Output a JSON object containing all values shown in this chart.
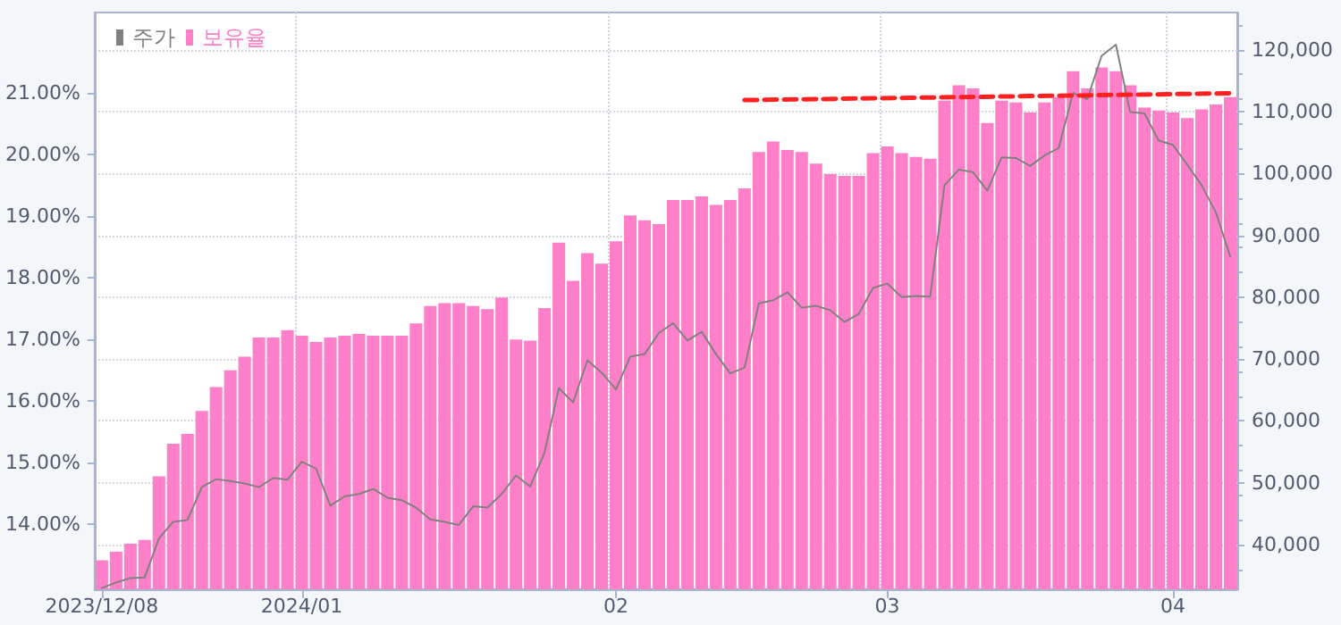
{
  "chart_data": {
    "type": "bar",
    "categories": [
      "2023/12/08",
      null,
      null,
      null,
      null,
      null,
      null,
      null,
      null,
      null,
      null,
      null,
      null,
      null,
      "2024/01",
      null,
      null,
      null,
      null,
      null,
      null,
      null,
      null,
      null,
      null,
      null,
      null,
      null,
      null,
      null,
      null,
      null,
      null,
      null,
      null,
      null,
      "02",
      null,
      null,
      null,
      null,
      null,
      null,
      null,
      null,
      null,
      null,
      null,
      null,
      null,
      null,
      null,
      null,
      null,
      null,
      "03",
      null,
      null,
      null,
      null,
      null,
      null,
      null,
      null,
      null,
      null,
      null,
      null,
      null,
      null,
      null,
      null,
      null,
      null,
      null,
      "04",
      null,
      null,
      null,
      null
    ],
    "series": [
      {
        "name": "주가",
        "type": "line",
        "axis": "y2",
        "color": "#808080",
        "values": [
          33000,
          33900,
          34600,
          34700,
          41000,
          43700,
          44000,
          49300,
          50600,
          50300,
          49900,
          49300,
          50800,
          50500,
          53400,
          52300,
          46300,
          47800,
          48200,
          49000,
          47600,
          47200,
          46000,
          44100,
          43700,
          43200,
          46200,
          46000,
          48200,
          51200,
          49400,
          54900,
          65300,
          63000,
          69800,
          67800,
          65100,
          70400,
          70800,
          74200,
          75800,
          73000,
          74400,
          70800,
          67700,
          68600,
          79000,
          79500,
          80800,
          78300,
          78600,
          77900,
          76000,
          77300,
          81500,
          82200,
          80000,
          80200,
          80100,
          98100,
          100600,
          100200,
          97200,
          102600,
          102500,
          101200,
          102900,
          104100,
          113000,
          112000,
          119000,
          120800,
          109900,
          109700,
          105300,
          104600,
          101400,
          98100,
          93700,
          86600
        ]
      },
      {
        "name": "보유율",
        "color": "#ff80c8",
        "values": [
          13.42,
          13.56,
          13.69,
          13.75,
          14.78,
          15.31,
          15.47,
          15.84,
          16.23,
          16.5,
          16.72,
          17.03,
          17.03,
          17.15,
          17.06,
          16.96,
          17.03,
          17.06,
          17.09,
          17.06,
          17.06,
          17.06,
          17.26,
          17.54,
          17.59,
          17.59,
          17.54,
          17.49,
          17.68,
          17.0,
          16.98,
          17.51,
          18.57,
          17.95,
          18.4,
          18.23,
          18.59,
          19.01,
          18.93,
          18.87,
          19.26,
          19.26,
          19.32,
          19.18,
          19.26,
          19.45,
          20.04,
          20.21,
          20.07,
          20.04,
          19.85,
          19.68,
          19.65,
          19.65,
          20.02,
          20.13,
          20.02,
          19.96,
          19.93,
          20.87,
          21.12,
          21.07,
          20.51,
          20.87,
          20.84,
          20.68,
          20.84,
          20.93,
          21.35,
          21.07,
          21.41,
          21.35,
          21.12,
          20.76,
          20.71,
          20.68,
          20.59,
          20.73,
          20.81,
          20.93
        ]
      },
      {
        "type": "line",
        "color": "#ff2020",
        "line_style": "dashed",
        "values": [
          null,
          null,
          null,
          null,
          null,
          null,
          null,
          null,
          null,
          null,
          null,
          null,
          null,
          null,
          null,
          null,
          null,
          null,
          null,
          null,
          null,
          null,
          null,
          null,
          null,
          null,
          null,
          null,
          null,
          null,
          null,
          null,
          null,
          null,
          null,
          null,
          null,
          null,
          null,
          null,
          null,
          null,
          null,
          null,
          null,
          20.88,
          null,
          null,
          null,
          null,
          null,
          null,
          null,
          null,
          null,
          null,
          null,
          null,
          null,
          null,
          null,
          null,
          null,
          null,
          null,
          null,
          null,
          null,
          null,
          null,
          null,
          null,
          null,
          null,
          null,
          null,
          null,
          null,
          null,
          20.99
        ]
      }
    ],
    "ylim": [
      12.95,
      22.3
    ],
    "yticks": [
      {
        "value": 14,
        "label": "14.00%"
      },
      {
        "value": 15,
        "label": "15.00%"
      },
      {
        "value": 16,
        "label": "16.00%"
      },
      {
        "value": 17,
        "label": "17.00%"
      },
      {
        "value": 18,
        "label": "18.00%"
      },
      {
        "value": 19,
        "label": "19.00%"
      },
      {
        "value": 20,
        "label": "20.00%"
      },
      {
        "value": 21,
        "label": "21.00%"
      }
    ],
    "y2lim": [
      32800,
      126000
    ],
    "y2ticks": [
      {
        "value": 40000,
        "label": "40,000"
      },
      {
        "value": 50000,
        "label": "50,000"
      },
      {
        "value": 60000,
        "label": "60,000"
      },
      {
        "value": 70000,
        "label": "70,000"
      },
      {
        "value": 80000,
        "label": "80,000"
      },
      {
        "value": 90000,
        "label": "90,000"
      },
      {
        "value": 100000,
        "label": "100,000"
      },
      {
        "value": 110000,
        "label": "110,000"
      },
      {
        "value": 120000,
        "label": "120,000"
      }
    ],
    "grid": true,
    "legend": "top left",
    "marker": "none"
  }
}
